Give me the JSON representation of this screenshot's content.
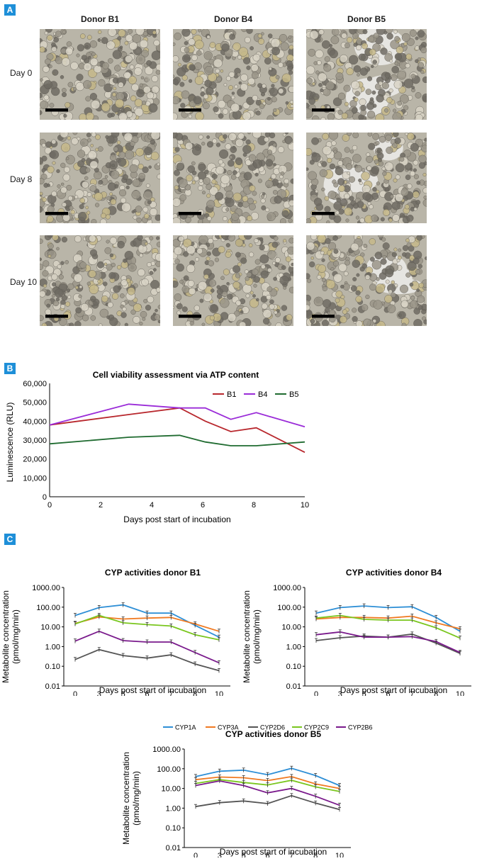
{
  "panels": {
    "a": "A",
    "b": "B",
    "c": "C"
  },
  "micrographs": {
    "columns": [
      "Donor B1",
      "Donor B4",
      "Donor B5"
    ],
    "rows": [
      "Day 0",
      "Day 8",
      "Day 10"
    ]
  },
  "chart_data": [
    {
      "type": "line",
      "title": "Cell viability assessment via ATP content",
      "xlabel": "Days post start of incubation",
      "ylabel": "Luminescence (RLU)",
      "xlim": [
        0,
        10
      ],
      "ylim": [
        0,
        60000
      ],
      "xticks": [
        0,
        2,
        4,
        6,
        8,
        10
      ],
      "yticks": [
        0,
        10000,
        20000,
        30000,
        40000,
        50000,
        60000
      ],
      "ytick_labels": [
        "0",
        "10,000",
        "20,000",
        "30,000",
        "40,000",
        "50,000",
        "60,000"
      ],
      "x": [
        0,
        3.1,
        5.1,
        6.1,
        7.1,
        8.1,
        10
      ],
      "legend": "top-right",
      "series": [
        {
          "name": "B1",
          "color": "#b8272d",
          "values": [
            38000,
            43500,
            47000,
            40000,
            34500,
            36500,
            23500
          ]
        },
        {
          "name": "B4",
          "color": "#9a2bd8",
          "values": [
            38000,
            49000,
            47000,
            47000,
            41000,
            44500,
            37000
          ]
        },
        {
          "name": "B5",
          "color": "#1f6b30",
          "values": [
            28000,
            31500,
            32500,
            29000,
            27000,
            27000,
            29000
          ]
        }
      ]
    },
    {
      "type": "line",
      "title": "CYP activities donor B1",
      "xlabel": "Days post start of incubation",
      "ylabel": [
        "Metabolite concentration",
        "(pmol/mg/min)"
      ],
      "yscale": "log",
      "ylim": [
        0.01,
        1000
      ],
      "yticks": [
        0.01,
        0.1,
        1,
        10,
        100,
        1000
      ],
      "ytick_labels": [
        "0.01",
        "0.10",
        "1.00",
        "10.00",
        "100.00",
        "1000.00"
      ],
      "categories": [
        "0",
        "3",
        "5",
        "6",
        "7",
        "8",
        "10"
      ],
      "series": [
        {
          "name": "CYP1A",
          "color": "#2e8fd6",
          "values": [
            38,
            95,
            130,
            50,
            50,
            12,
            3
          ]
        },
        {
          "name": "CYP3A",
          "color": "#f07a22",
          "values": [
            15,
            32,
            25,
            28,
            30,
            14,
            6
          ]
        },
        {
          "name": "CYP2D6",
          "color": "#555555",
          "values": [
            0.22,
            0.7,
            0.35,
            0.26,
            0.38,
            0.13,
            0.06
          ]
        },
        {
          "name": "CYP2C9",
          "color": "#7ac61e",
          "values": [
            14,
            38,
            16,
            13,
            11,
            4,
            2.2
          ]
        },
        {
          "name": "CYP2B6",
          "color": "#7a1a8c",
          "values": [
            1.9,
            6,
            2,
            1.7,
            1.7,
            0.5,
            0.15
          ]
        }
      ]
    },
    {
      "type": "line",
      "title": "CYP activities donor B4",
      "xlabel": "Days post start of incubation",
      "ylabel": [
        "Metabolite concentration",
        "(pmol/mg/min)"
      ],
      "yscale": "log",
      "ylim": [
        0.01,
        1000
      ],
      "yticks": [
        0.01,
        0.1,
        1,
        10,
        100,
        1000
      ],
      "ytick_labels": [
        "0.01",
        "0.10",
        "1.00",
        "10.00",
        "100.00",
        "1000.00"
      ],
      "categories": [
        "0",
        "3",
        "5",
        "6",
        "7",
        "8",
        "10"
      ],
      "series": [
        {
          "name": "CYP1A",
          "color": "#2e8fd6",
          "values": [
            50,
            95,
            115,
            95,
            105,
            30,
            6
          ]
        },
        {
          "name": "CYP3A",
          "color": "#f07a22",
          "values": [
            25,
            30,
            30,
            28,
            35,
            16,
            8
          ]
        },
        {
          "name": "CYP2D6",
          "color": "#555555",
          "values": [
            2,
            2.8,
            3.4,
            3,
            4.3,
            1.5,
            0.45
          ]
        },
        {
          "name": "CYP2C9",
          "color": "#7ac61e",
          "values": [
            28,
            38,
            24,
            22,
            22,
            9,
            2.7
          ]
        },
        {
          "name": "CYP2B6",
          "color": "#7a1a8c",
          "values": [
            4,
            5.5,
            3,
            3,
            3.2,
            1.8,
            0.5
          ]
        }
      ]
    },
    {
      "type": "line",
      "title": "CYP activities donor B5",
      "xlabel": "Days post start of incubation",
      "ylabel": [
        "Metabolite concentration",
        "(pmol/mg/min)"
      ],
      "yscale": "log",
      "ylim": [
        0.01,
        1000
      ],
      "yticks": [
        0.01,
        0.1,
        1,
        10,
        100,
        1000
      ],
      "ytick_labels": [
        "0.01",
        "0.10",
        "1.00",
        "10.00",
        "100.00",
        "1000.00"
      ],
      "categories": [
        "0",
        "3",
        "5",
        "6",
        "7",
        "8",
        "10"
      ],
      "series": [
        {
          "name": "CYP1A",
          "color": "#2e8fd6",
          "values": [
            40,
            75,
            85,
            50,
            105,
            45,
            14
          ]
        },
        {
          "name": "CYP3A",
          "color": "#f07a22",
          "values": [
            28,
            38,
            35,
            25,
            40,
            17,
            10
          ]
        },
        {
          "name": "CYP2D6",
          "color": "#555555",
          "values": [
            1.2,
            1.9,
            2.3,
            1.7,
            4.3,
            1.8,
            0.85
          ]
        },
        {
          "name": "CYP2C9",
          "color": "#7ac61e",
          "values": [
            18,
            28,
            20,
            15,
            26,
            12,
            7
          ]
        },
        {
          "name": "CYP2B6",
          "color": "#7a1a8c",
          "values": [
            14,
            24,
            14,
            6,
            10,
            4,
            1.4
          ]
        }
      ]
    }
  ],
  "cyp_legend": [
    {
      "name": "CYP1A",
      "color": "#2e8fd6"
    },
    {
      "name": "CYP3A",
      "color": "#f07a22"
    },
    {
      "name": "CYP2D6",
      "color": "#555555"
    },
    {
      "name": "CYP2C9",
      "color": "#7ac61e"
    },
    {
      "name": "CYP2B6",
      "color": "#7a1a8c"
    }
  ]
}
